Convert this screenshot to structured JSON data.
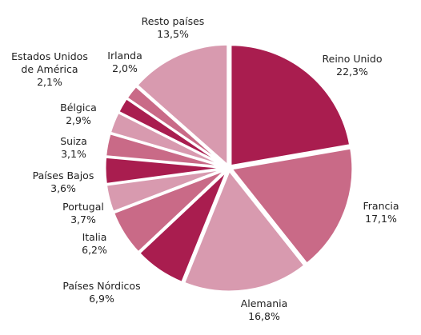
{
  "chart_data": {
    "type": "pie",
    "categories": [
      "Reino Unido",
      "Francia",
      "Alemania",
      "Países Nórdicos",
      "Italia",
      "Portugal",
      "Países Bajos",
      "Suiza",
      "Bélgica",
      "Estados Unidos de América",
      "Irlanda",
      "Resto países"
    ],
    "values": [
      22.3,
      17.1,
      16.8,
      6.9,
      6.2,
      3.7,
      3.6,
      3.1,
      2.9,
      2.1,
      2.0,
      13.5
    ],
    "value_labels": [
      "22,3%",
      "17,1%",
      "16,8%",
      "6,9%",
      "6,2%",
      "3,7%",
      "3,6%",
      "3,1%",
      "2,9%",
      "2,1%",
      "2,0%",
      "13,5%"
    ],
    "colors": [
      "#a91d4f",
      "#c96a87",
      "#d89aaf",
      "#a91d4f",
      "#c96a87",
      "#d89aaf",
      "#a91d4f",
      "#c96a87",
      "#d89aaf",
      "#a91d4f",
      "#c96a87",
      "#d89aaf"
    ]
  }
}
